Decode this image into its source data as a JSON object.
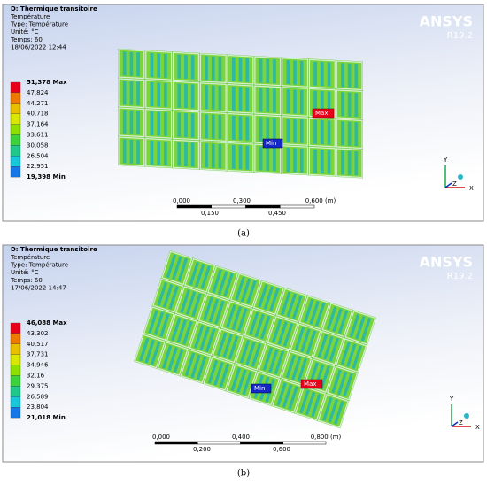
{
  "panels": [
    {
      "header": {
        "title": "D: Thermique transitoire",
        "lines": [
          "Température",
          "Type: Température",
          "Unité: °C",
          "Temps: 60",
          "18/06/2022 12:44"
        ]
      },
      "legend": [
        "51,378 Max",
        "47,824",
        "44,271",
        "40,718",
        "37,164",
        "33,611",
        "30,058",
        "26,504",
        "22,951",
        "19,398 Min"
      ],
      "brand": "ANSYS",
      "version": "R19.2",
      "scale": {
        "top": [
          "0,000",
          "0,300",
          "0,600 (m)"
        ],
        "bottom": [
          "0,150",
          "0,450"
        ]
      },
      "markers": {
        "max": "Max",
        "min": "Min"
      },
      "triad": [
        "Y",
        "Z",
        "X"
      ],
      "caption": "(a)"
    },
    {
      "header": {
        "title": "D: Thermique transitoire",
        "lines": [
          "Température",
          "Type: Température",
          "Unité: °C",
          "Temps: 60",
          "17/06/2022 14:47"
        ]
      },
      "legend": [
        "46,088 Max",
        "43,302",
        "40,517",
        "37,731",
        "34,946",
        "32,16",
        "29,375",
        "26,589",
        "23,804",
        "21,018 Min"
      ],
      "brand": "ANSYS",
      "version": "R19.2",
      "scale": {
        "top": [
          "0,000",
          "0,400",
          "0,800 (m)"
        ],
        "bottom": [
          "0,200",
          "0,600"
        ]
      },
      "markers": {
        "max": "Max",
        "min": "Min"
      },
      "triad": [
        "Y",
        "Z",
        "X"
      ],
      "caption": "(b)"
    }
  ]
}
